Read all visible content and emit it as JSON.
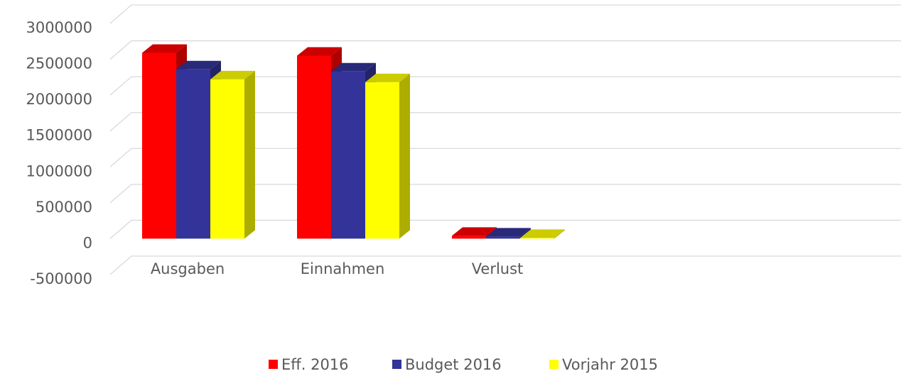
{
  "chart_data": {
    "type": "bar3d",
    "categories": [
      "Ausgaben",
      "Einnahmen",
      "Verlust"
    ],
    "series": [
      {
        "name": "Eff. 2016",
        "color": "#ff0000",
        "values": [
          2590000,
          2550000,
          40000
        ]
      },
      {
        "name": "Budget 2016",
        "color": "#333399",
        "values": [
          2360000,
          2330000,
          30000
        ]
      },
      {
        "name": "Vorjahr 2015",
        "color": "#ffff00",
        "values": [
          2220000,
          2180000,
          10000
        ]
      }
    ],
    "ylim": [
      -500000,
      3000000
    ],
    "yticks": [
      -500000,
      0,
      500000,
      1000000,
      1500000,
      2000000,
      2500000,
      3000000
    ],
    "grid": true,
    "legend": "bottom"
  }
}
